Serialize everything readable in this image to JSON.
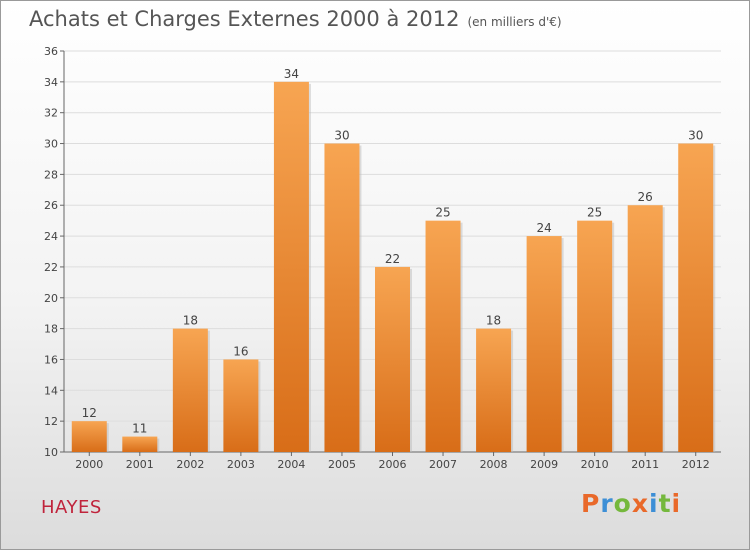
{
  "header": {
    "title": "Achats et Charges Externes 2000 à 2012",
    "subtitle": "(en milliers d'€)"
  },
  "footer": {
    "commune": "HAYES",
    "logo_text": "Proxiti"
  },
  "colors": {
    "bar_top": "#f7a552",
    "bar_bottom": "#d86d18",
    "commune": "#c0243c",
    "logo_letters": [
      "#e9692a",
      "#3d8fd6",
      "#75b83d",
      "#e9692a",
      "#3d8fd6",
      "#75b83d",
      "#e9692a"
    ]
  },
  "chart_data": {
    "type": "bar",
    "title": "Achats et Charges Externes 2000 à 2012",
    "subtitle": "(en milliers d'€)",
    "categories": [
      "2000",
      "2001",
      "2002",
      "2003",
      "2004",
      "2005",
      "2006",
      "2007",
      "2008",
      "2009",
      "2010",
      "2011",
      "2012"
    ],
    "values": [
      12,
      11,
      18,
      16,
      34,
      30,
      22,
      25,
      18,
      24,
      25,
      26,
      30
    ],
    "ylim": [
      10,
      36
    ],
    "yticks": [
      10,
      12,
      14,
      16,
      18,
      20,
      22,
      24,
      26,
      28,
      30,
      32,
      34,
      36
    ],
    "xlabel": "",
    "ylabel": "",
    "grid": true,
    "data_labels": true
  }
}
